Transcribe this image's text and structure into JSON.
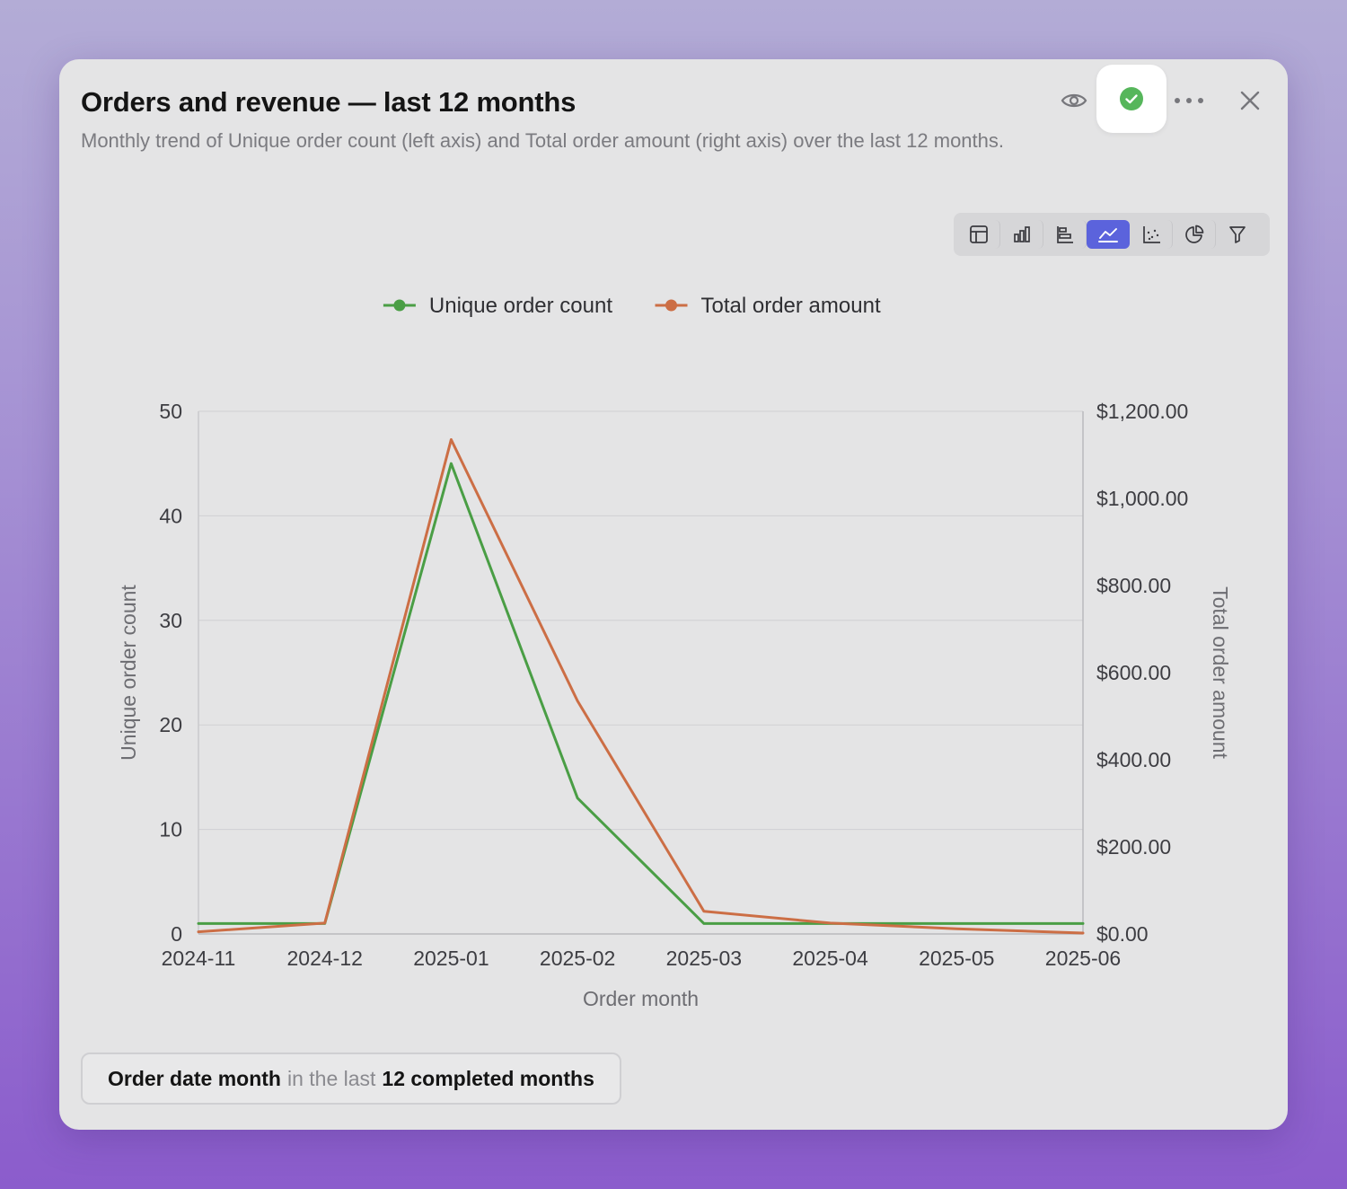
{
  "panel": {
    "title": "Orders and revenue — last 12 months",
    "subtitle": "Monthly trend of Unique order count (left axis) and Total order amount (right axis) over the last 12 months."
  },
  "header_actions": [
    {
      "icon": "eye-icon"
    },
    {
      "icon": "check-circle-icon",
      "color": "#56b65b"
    },
    {
      "icon": "more-icon"
    },
    {
      "icon": "close-icon"
    }
  ],
  "viz_toolbar": [
    {
      "icon": "table-icon"
    },
    {
      "icon": "bar-chart-icon"
    },
    {
      "icon": "horizontal-bar-chart-icon"
    },
    {
      "icon": "line-chart-icon",
      "active": true
    },
    {
      "icon": "scatter-chart-icon"
    },
    {
      "icon": "pie-chart-icon"
    },
    {
      "icon": "filter-icon"
    }
  ],
  "filter_chip": {
    "field": "Order date month",
    "connector": "in the last",
    "value": "12 completed months"
  },
  "chart_data": {
    "type": "line",
    "x": [
      "2024-11",
      "2024-12",
      "2025-01",
      "2025-02",
      "2025-03",
      "2025-04",
      "2025-05",
      "2025-06"
    ],
    "x_ticks": [
      "2024-11",
      "2024-12",
      "2025-01",
      "2025-02",
      "2025-03",
      "2025-04",
      "2025-05",
      "2025-06"
    ],
    "xlabel": "Order month",
    "ylabel": "Unique order count",
    "ylabel_right": "Total order amount",
    "ylim": [
      0,
      50
    ],
    "ylim_right": [
      0,
      1200
    ],
    "y_ticks": [
      "0",
      "10",
      "20",
      "30",
      "40",
      "50"
    ],
    "y_ticks_right": [
      "$0.00",
      "$200.00",
      "$400.00",
      "$600.00",
      "$800.00",
      "$1,000.00",
      "$1,200.00"
    ],
    "grid": true,
    "legend_position": "top-center",
    "series": [
      {
        "name": "Unique order count",
        "axis": "left",
        "color": "#4a9e45",
        "values": [
          1,
          1,
          45,
          13,
          1,
          1,
          1,
          1
        ]
      },
      {
        "name": "Total order amount",
        "axis": "right",
        "color": "#cc6e45",
        "values": [
          5,
          25,
          1135,
          535,
          52,
          25,
          12,
          2
        ]
      }
    ]
  }
}
